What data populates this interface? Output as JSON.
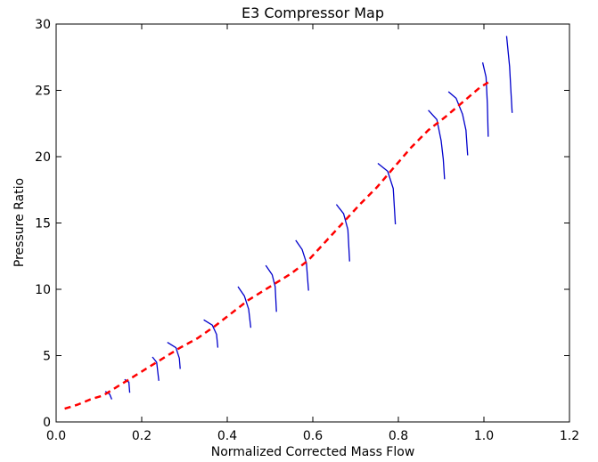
{
  "chart_data": {
    "type": "line",
    "title": "E3 Compressor Map",
    "xlabel": "Normalized Corrected Mass Flow",
    "ylabel": "Pressure Ratio",
    "xlim": [
      0.0,
      1.2
    ],
    "ylim": [
      0,
      30
    ],
    "xticks": [
      "0.0",
      "0.2",
      "0.4",
      "0.6",
      "0.8",
      "1.0",
      "1.2"
    ],
    "yticks": [
      "0",
      "5",
      "10",
      "15",
      "20",
      "25",
      "30"
    ],
    "grid": false,
    "legend": null,
    "series": [
      {
        "color": "#ff0000",
        "style": "dashed",
        "x": [
          0.02,
          0.05,
          0.08,
          0.11,
          0.13,
          0.16,
          0.2,
          0.24,
          0.29,
          0.33,
          0.37,
          0.41,
          0.45,
          0.5,
          0.55,
          0.59,
          0.63,
          0.67,
          0.71,
          0.75,
          0.79,
          0.83,
          0.87,
          0.91,
          0.95,
          0.99,
          1.01
        ],
        "y": [
          1.0,
          1.3,
          1.7,
          2.0,
          2.4,
          3.0,
          3.8,
          4.6,
          5.6,
          6.3,
          7.2,
          8.2,
          9.2,
          10.2,
          11.2,
          12.2,
          13.6,
          15.0,
          16.4,
          17.7,
          19.2,
          20.7,
          22.0,
          23.0,
          24.1,
          25.2,
          25.6
        ]
      }
    ],
    "speed_lines": [
      {
        "color": "#0000cc",
        "x": [
          0.115,
          0.125,
          0.13
        ],
        "y": [
          2.3,
          2.1,
          1.7
        ]
      },
      {
        "color": "#0000cc",
        "x": [
          0.16,
          0.17,
          0.172
        ],
        "y": [
          3.2,
          3.0,
          2.2
        ]
      },
      {
        "color": "#0000cc",
        "x": [
          0.225,
          0.235,
          0.24
        ],
        "y": [
          4.9,
          4.5,
          3.1
        ]
      },
      {
        "color": "#0000cc",
        "x": [
          0.26,
          0.28,
          0.288,
          0.29
        ],
        "y": [
          6.0,
          5.6,
          4.8,
          4.0
        ]
      },
      {
        "color": "#0000cc",
        "x": [
          0.345,
          0.365,
          0.375,
          0.378
        ],
        "y": [
          7.7,
          7.3,
          6.6,
          5.6
        ]
      },
      {
        "color": "#0000cc",
        "x": [
          0.425,
          0.44,
          0.45,
          0.455
        ],
        "y": [
          10.2,
          9.5,
          8.5,
          7.1
        ]
      },
      {
        "color": "#0000cc",
        "x": [
          0.49,
          0.505,
          0.512,
          0.515
        ],
        "y": [
          11.8,
          11.1,
          10.2,
          8.3
        ]
      },
      {
        "color": "#0000cc",
        "x": [
          0.56,
          0.575,
          0.585,
          0.59
        ],
        "y": [
          13.7,
          13.0,
          12.0,
          9.9
        ]
      },
      {
        "color": "#0000cc",
        "x": [
          0.655,
          0.672,
          0.682,
          0.686
        ],
        "y": [
          16.4,
          15.7,
          14.5,
          12.1
        ]
      },
      {
        "color": "#0000cc",
        "x": [
          0.752,
          0.775,
          0.788,
          0.793
        ],
        "y": [
          19.5,
          18.9,
          17.6,
          14.9
        ]
      },
      {
        "color": "#0000cc",
        "x": [
          0.87,
          0.89,
          0.9,
          0.905,
          0.908
        ],
        "y": [
          23.5,
          22.8,
          21.2,
          19.8,
          18.3
        ]
      },
      {
        "color": "#0000cc",
        "x": [
          0.917,
          0.935,
          0.95,
          0.958,
          0.962
        ],
        "y": [
          24.9,
          24.4,
          23.2,
          22.0,
          20.1
        ]
      },
      {
        "color": "#0000cc",
        "x": [
          0.997,
          1.005,
          1.008,
          1.01
        ],
        "y": [
          27.1,
          26.0,
          24.0,
          21.5
        ]
      },
      {
        "color": "#0000cc",
        "x": [
          1.053,
          1.06,
          1.063,
          1.066
        ],
        "y": [
          29.1,
          26.8,
          25.0,
          23.3
        ]
      }
    ]
  }
}
